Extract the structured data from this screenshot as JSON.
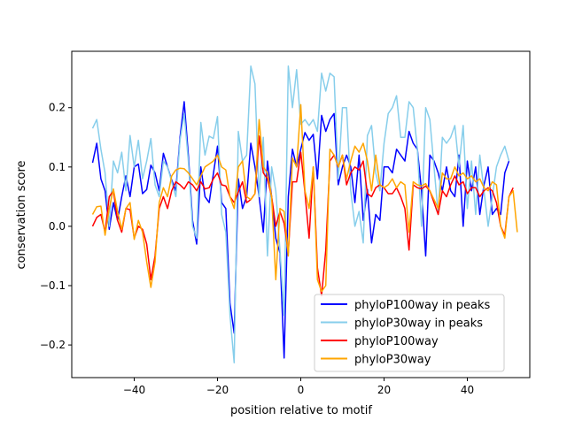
{
  "chart_data": {
    "type": "line",
    "title": "",
    "xlabel": "position relative to motif",
    "ylabel": "conservation score",
    "xlim": [
      -55,
      55
    ],
    "ylim": [
      -0.255,
      0.295
    ],
    "xticks": [
      -40,
      -20,
      0,
      20,
      40
    ],
    "xtick_labels": [
      "−40",
      "−20",
      "0",
      "20",
      "40"
    ],
    "yticks": [
      -0.2,
      -0.1,
      0.0,
      0.1,
      0.2
    ],
    "ytick_labels": [
      "−0.2",
      "−0.1",
      "0.0",
      "0.1",
      "0.2"
    ],
    "grid": false,
    "legend_position": "lower-right",
    "x_start": -50,
    "x_end": 50,
    "series": [
      {
        "name": "phyloP100way in peaks",
        "color": "#0000ff",
        "values": [
          0.107,
          0.14,
          0.08,
          0.06,
          -0.005,
          0.04,
          0.01,
          0.05,
          0.085,
          0.05,
          0.1,
          0.105,
          0.055,
          0.062,
          0.103,
          0.09,
          0.06,
          0.123,
          0.1,
          0.078,
          0.06,
          0.15,
          0.21,
          0.12,
          0.01,
          -0.03,
          0.1,
          0.05,
          0.04,
          0.088,
          0.135,
          0.04,
          0.03,
          -0.13,
          -0.18,
          0.08,
          0.03,
          0.05,
          0.14,
          0.1,
          0.05,
          -0.01,
          0.11,
          0.05,
          -0.02,
          -0.045,
          -0.222,
          0.05,
          0.13,
          0.1,
          0.13,
          0.158,
          0.145,
          0.155,
          0.08,
          0.187,
          0.16,
          0.18,
          0.19,
          0.07,
          0.1,
          0.12,
          0.1,
          0.04,
          0.12,
          0.01,
          0.062,
          -0.028,
          0.02,
          0.01,
          0.1,
          0.1,
          0.09,
          0.13,
          0.12,
          0.11,
          0.16,
          0.14,
          0.13,
          0.06,
          -0.05,
          0.12,
          0.11,
          0.09,
          0.06,
          0.1,
          0.06,
          0.05,
          0.12,
          0.0,
          0.11,
          0.06,
          0.1,
          0.02,
          0.07,
          0.1,
          0.02,
          0.03,
          0.02,
          0.09,
          0.11
        ]
      },
      {
        "name": "phyloP30way in peaks",
        "color": "#87ceeb",
        "values": [
          0.165,
          0.18,
          0.13,
          0.09,
          0.0,
          0.11,
          0.09,
          0.125,
          0.06,
          0.153,
          0.1,
          0.145,
          0.08,
          0.11,
          0.148,
          0.07,
          0.05,
          0.11,
          0.1,
          0.075,
          0.05,
          0.145,
          0.19,
          0.11,
          0.0,
          -0.02,
          0.175,
          0.12,
          0.152,
          0.148,
          0.185,
          0.02,
          -0.01,
          -0.15,
          -0.23,
          0.16,
          0.11,
          0.12,
          0.27,
          0.24,
          0.05,
          0.15,
          -0.05,
          0.1,
          0.06,
          -0.04,
          -0.15,
          0.27,
          0.2,
          0.264,
          0.172,
          0.18,
          0.17,
          0.18,
          0.16,
          0.258,
          0.228,
          0.258,
          0.252,
          0.08,
          0.2,
          0.2,
          0.06,
          0.0,
          0.025,
          -0.028,
          0.153,
          0.17,
          0.09,
          0.06,
          0.14,
          0.19,
          0.2,
          0.22,
          0.15,
          0.15,
          0.21,
          0.2,
          0.13,
          0.0,
          0.2,
          0.18,
          0.1,
          0.02,
          0.15,
          0.14,
          0.15,
          0.17,
          0.1,
          0.17,
          0.03,
          0.11,
          0.02,
          0.12,
          0.06,
          0.0,
          0.05,
          0.1,
          0.12,
          0.135,
          0.11
        ]
      },
      {
        "name": "phyloP100way",
        "color": "#ff0000",
        "values": [
          0.0,
          0.015,
          0.02,
          -0.01,
          0.05,
          0.06,
          0.01,
          -0.01,
          0.03,
          0.028,
          -0.02,
          0.0,
          -0.005,
          -0.03,
          -0.09,
          -0.05,
          0.03,
          0.05,
          0.03,
          0.06,
          0.075,
          0.07,
          0.063,
          0.075,
          0.07,
          0.06,
          0.075,
          0.063,
          0.065,
          0.08,
          0.09,
          0.07,
          0.068,
          0.05,
          0.04,
          0.058,
          0.075,
          0.04,
          0.045,
          0.055,
          0.152,
          0.09,
          0.08,
          0.05,
          0.0,
          0.025,
          0.005,
          -0.045,
          0.075,
          0.075,
          0.125,
          0.057,
          -0.02,
          0.1,
          -0.07,
          -0.117,
          -0.04,
          0.11,
          0.12,
          0.1,
          0.12,
          0.07,
          0.09,
          0.1,
          0.095,
          0.11,
          0.055,
          0.05,
          0.065,
          0.07,
          0.065,
          0.055,
          0.055,
          0.065,
          0.05,
          0.03,
          -0.04,
          0.07,
          0.065,
          0.063,
          0.068,
          0.06,
          0.04,
          0.02,
          0.06,
          0.05,
          0.07,
          0.085,
          0.07,
          0.075,
          0.055,
          0.065,
          0.065,
          0.05,
          0.06,
          0.065,
          0.06,
          0.04,
          0.0,
          -0.015,
          0.05,
          0.065
        ]
      },
      {
        "name": "phyloP30way",
        "color": "#ffa500",
        "values": [
          0.02,
          0.033,
          0.034,
          -0.015,
          0.03,
          0.063,
          0.025,
          -0.005,
          0.03,
          0.04,
          -0.022,
          0.01,
          -0.01,
          -0.06,
          -0.103,
          -0.06,
          0.04,
          0.065,
          0.05,
          0.085,
          0.095,
          0.098,
          0.097,
          0.09,
          0.08,
          0.07,
          0.085,
          0.1,
          0.105,
          0.11,
          0.12,
          0.1,
          0.095,
          0.05,
          0.03,
          0.1,
          0.11,
          0.05,
          0.045,
          0.055,
          0.18,
          0.1,
          0.09,
          0.05,
          -0.09,
          0.03,
          0.025,
          -0.05,
          0.115,
          0.1,
          0.205,
          0.06,
          0.03,
          0.1,
          -0.09,
          -0.11,
          -0.1,
          0.13,
          0.12,
          0.1,
          0.12,
          0.08,
          0.11,
          0.135,
          0.125,
          0.14,
          0.11,
          0.06,
          0.12,
          0.07,
          0.065,
          0.07,
          0.08,
          0.065,
          0.075,
          0.07,
          -0.01,
          0.075,
          0.07,
          0.068,
          0.072,
          0.06,
          0.045,
          0.03,
          0.09,
          0.08,
          0.08,
          0.1,
          0.085,
          0.09,
          0.08,
          0.085,
          0.075,
          0.08,
          0.065,
          0.06,
          0.075,
          0.07,
          0.0,
          -0.02,
          0.05,
          0.06,
          -0.01
        ]
      }
    ]
  }
}
